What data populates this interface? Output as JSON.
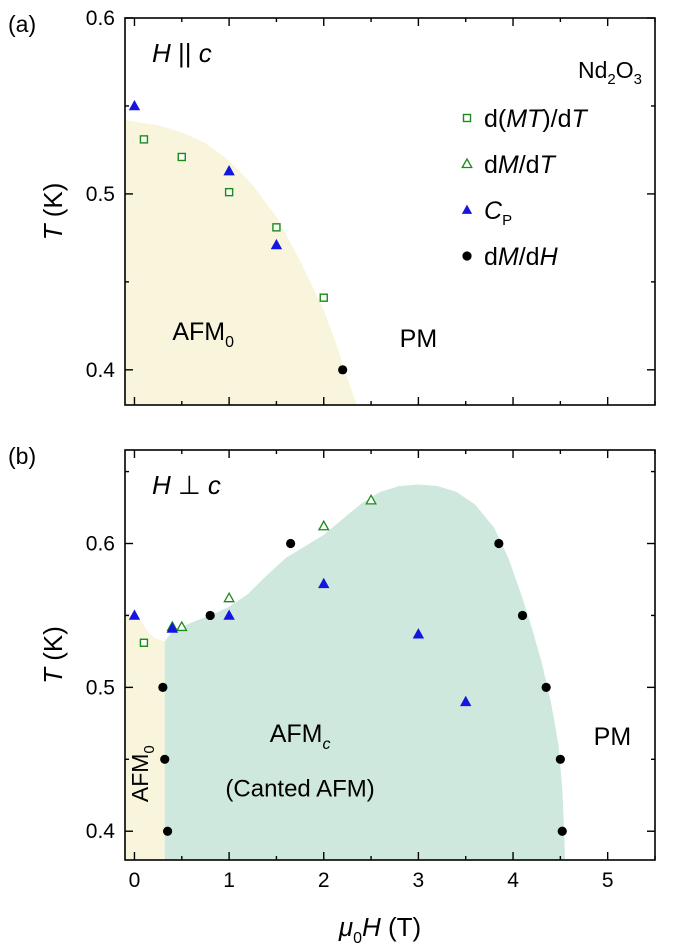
{
  "chart_data": [
    {
      "type": "scatter",
      "panel_label": "(a)",
      "condition": {
        "text": "H",
        "symbol": "||",
        "sub": "c"
      },
      "compound": {
        "p1": "Nd",
        "s1": "2",
        "p2": "O",
        "s2": "3"
      },
      "ylabel": {
        "main": "T",
        "unit": " (K)"
      },
      "ylim": [
        0.38,
        0.6
      ],
      "yticks": [
        "0.4",
        "0.5",
        "0.6"
      ],
      "xlim": [
        -0.1,
        5.5
      ],
      "legend": [
        {
          "marker": "square",
          "parts": [
            [
              "d(",
              "n"
            ],
            [
              "MT",
              "i"
            ],
            [
              ")/d",
              "n"
            ],
            [
              "T",
              "i"
            ]
          ]
        },
        {
          "marker": "triangle-open",
          "parts": [
            [
              "d",
              "n"
            ],
            [
              "M",
              "i"
            ],
            [
              "/d",
              "n"
            ],
            [
              "T",
              "i"
            ]
          ]
        },
        {
          "marker": "triangle",
          "parts": [
            [
              "C",
              "i"
            ]
          ],
          "sub": "P"
        },
        {
          "marker": "circle",
          "parts": [
            [
              "d",
              "n"
            ],
            [
              "M",
              "i"
            ],
            [
              "/d",
              "n"
            ],
            [
              "H",
              "i"
            ]
          ]
        }
      ],
      "regions": [
        {
          "name": "AFM0",
          "label": "AFM",
          "sub": "0",
          "color": "#f8f5dc",
          "boundary": [
            [
              -0.1,
              0.542
            ],
            [
              0,
              0.541
            ],
            [
              0.25,
              0.539
            ],
            [
              0.5,
              0.535
            ],
            [
              0.75,
              0.529
            ],
            [
              1.0,
              0.519
            ],
            [
              1.25,
              0.505
            ],
            [
              1.5,
              0.487
            ],
            [
              1.75,
              0.462
            ],
            [
              2.0,
              0.434
            ],
            [
              2.15,
              0.412
            ],
            [
              2.25,
              0.395
            ],
            [
              2.35,
              0.38
            ]
          ]
        }
      ],
      "region_text": [
        {
          "text": "PM",
          "x": 3.0,
          "y": 0.413
        }
      ],
      "series": [
        {
          "marker": "square",
          "color": "#1a8a1a",
          "x": [
            0.1,
            0.5,
            1.0,
            1.5,
            2.0
          ],
          "y": [
            0.531,
            0.521,
            0.501,
            0.481,
            0.441
          ]
        },
        {
          "marker": "triangle",
          "color": "#1515e0",
          "x": [
            0,
            1.0,
            1.5
          ],
          "y": [
            0.55,
            0.513,
            0.471
          ]
        },
        {
          "marker": "circle",
          "color": "#000000",
          "x": [
            2.2
          ],
          "y": [
            0.4
          ]
        }
      ]
    },
    {
      "type": "scatter",
      "panel_label": "(b)",
      "condition": {
        "text": "H",
        "symbol": "⊥",
        "sub": "c"
      },
      "ylabel": {
        "main": "T",
        "unit": " (K)"
      },
      "ylim": [
        0.38,
        0.665
      ],
      "yticks": [
        "0.4",
        "0.5",
        "0.6"
      ],
      "xlim": [
        -0.1,
        5.5
      ],
      "xticks": [
        "0",
        "1",
        "2",
        "3",
        "4",
        "5"
      ],
      "xlabel": {
        "pre": "μ",
        "pre_sub": "0",
        "var": "H",
        "unit": " (T)"
      },
      "regions": [
        {
          "name": "AFM0",
          "label": "AFM",
          "sub": "0",
          "vertical": true,
          "color": "#f8f5dc",
          "boundary": [
            [
              -0.1,
              0.552
            ],
            [
              0,
              0.551
            ],
            [
              0.08,
              0.545
            ],
            [
              0.15,
              0.538
            ],
            [
              0.22,
              0.534
            ],
            [
              0.32,
              0.532
            ],
            [
              0.32,
              0.38
            ],
            [
              -0.1,
              0.38
            ]
          ]
        },
        {
          "name": "AFMc",
          "label": "AFM",
          "sub": "c",
          "line2": "(Canted AFM)",
          "color": "#cfe8dd",
          "boundary": [
            [
              0.32,
              0.38
            ],
            [
              0.32,
              0.532
            ],
            [
              0.4,
              0.539
            ],
            [
              0.6,
              0.545
            ],
            [
              0.8,
              0.55
            ],
            [
              1.0,
              0.556
            ],
            [
              1.2,
              0.565
            ],
            [
              1.4,
              0.578
            ],
            [
              1.6,
              0.59
            ],
            [
              1.8,
              0.598
            ],
            [
              2.0,
              0.606
            ],
            [
              2.2,
              0.617
            ],
            [
              2.4,
              0.628
            ],
            [
              2.6,
              0.636
            ],
            [
              2.8,
              0.64
            ],
            [
              3.0,
              0.641
            ],
            [
              3.2,
              0.64
            ],
            [
              3.4,
              0.636
            ],
            [
              3.6,
              0.627
            ],
            [
              3.8,
              0.611
            ],
            [
              3.95,
              0.59
            ],
            [
              4.1,
              0.562
            ],
            [
              4.2,
              0.541
            ],
            [
              4.3,
              0.518
            ],
            [
              4.4,
              0.49
            ],
            [
              4.48,
              0.46
            ],
            [
              4.52,
              0.43
            ],
            [
              4.54,
              0.4
            ],
            [
              4.55,
              0.38
            ]
          ]
        }
      ],
      "region_text": [
        {
          "text": "PM",
          "x": 5.05,
          "y": 0.46
        }
      ],
      "series": [
        {
          "marker": "square",
          "color": "#1a8a1a",
          "x": [
            0.1
          ],
          "y": [
            0.531
          ]
        },
        {
          "marker": "triangle-open",
          "color": "#1a8a1a",
          "x": [
            0.4,
            0.5,
            1.0,
            2.0,
            2.5
          ],
          "y": [
            0.542,
            0.542,
            0.562,
            0.612,
            0.63
          ]
        },
        {
          "marker": "triangle",
          "color": "#1515e0",
          "x": [
            0,
            0.4,
            1.0,
            2.0,
            3.0,
            3.5
          ],
          "y": [
            0.55,
            0.541,
            0.55,
            0.572,
            0.537,
            0.49
          ]
        },
        {
          "marker": "circle",
          "color": "#000000",
          "x": [
            0.3,
            0.32,
            0.35,
            0.8,
            1.65,
            3.85,
            4.1,
            4.35,
            4.5,
            4.52
          ],
          "y": [
            0.5,
            0.45,
            0.4,
            0.55,
            0.6,
            0.6,
            0.55,
            0.5,
            0.45,
            0.4
          ]
        }
      ]
    }
  ]
}
